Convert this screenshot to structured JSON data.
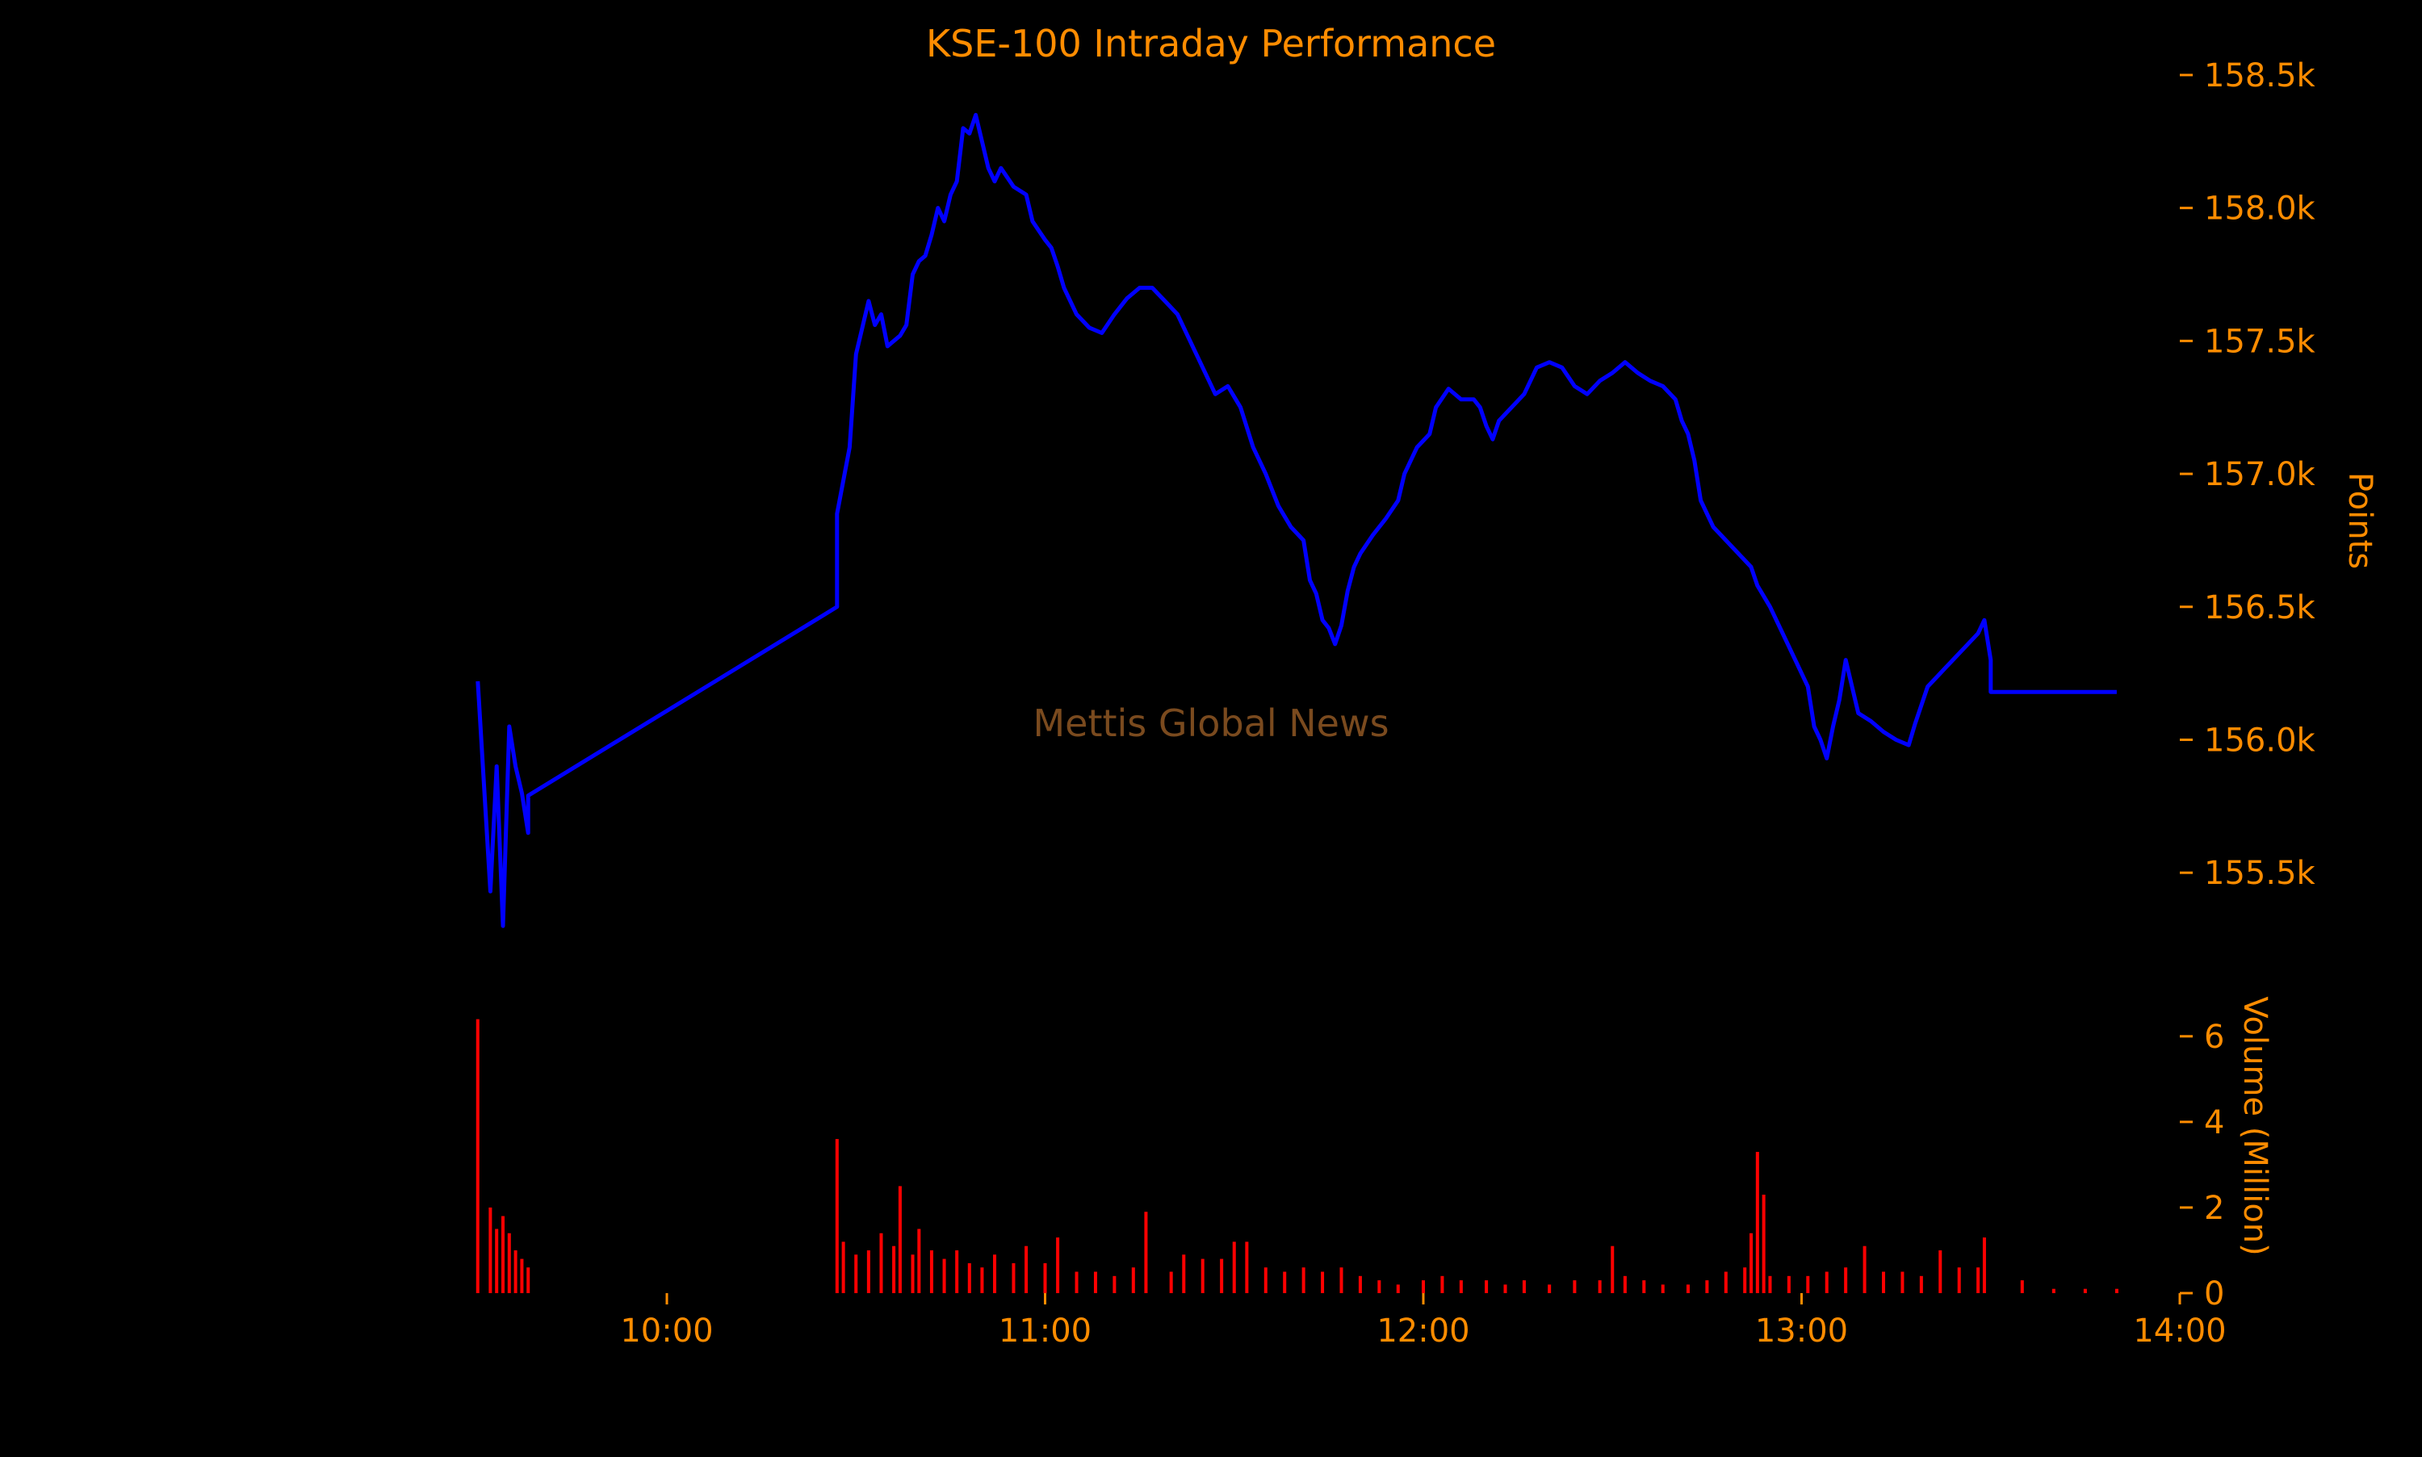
{
  "colors": {
    "background": "#000000",
    "text": "#ff8c00",
    "price_line": "#0000ff",
    "volume_bars": "#ff0000",
    "watermark": "#7a4a1e"
  },
  "chart_data": [
    {
      "type": "line",
      "title": "KSE-100 Intraday Performance",
      "watermark": "Mettis Global News",
      "xlabel": "",
      "ylabel": "Points",
      "y_axis_side": "right",
      "xlim": [
        "09:15",
        "14:00"
      ],
      "ylim": [
        155200,
        158600
      ],
      "y_ticks": [
        155500,
        156000,
        156500,
        157000,
        157500,
        158000,
        158500
      ],
      "y_tick_labels": [
        "155.5k",
        "156.0k",
        "156.5k",
        "157.0k",
        "157.5k",
        "158.0k",
        "158.5k"
      ],
      "grid": false,
      "series": [
        {
          "points": [
            [
              "09:30",
              156220
            ],
            [
              "09:32",
              155430
            ],
            [
              "09:33",
              155900
            ],
            [
              "09:34",
              155300
            ],
            [
              "09:35",
              156050
            ],
            [
              "09:36",
              155900
            ],
            [
              "09:37",
              155800
            ],
            [
              "09:38",
              155650
            ],
            [
              "09:38",
              155790
            ],
            [
              "10:27",
              156500
            ],
            [
              "10:27",
              156850
            ],
            [
              "10:29",
              157100
            ],
            [
              "10:30",
              157450
            ],
            [
              "10:31",
              157550
            ],
            [
              "10:32",
              157650
            ],
            [
              "10:33",
              157560
            ],
            [
              "10:34",
              157600
            ],
            [
              "10:35",
              157480
            ],
            [
              "10:37",
              157520
            ],
            [
              "10:38",
              157560
            ],
            [
              "10:39",
              157750
            ],
            [
              "10:40",
              157800
            ],
            [
              "10:41",
              157820
            ],
            [
              "10:42",
              157900
            ],
            [
              "10:43",
              158000
            ],
            [
              "10:44",
              157950
            ],
            [
              "10:45",
              158050
            ],
            [
              "10:46",
              158100
            ],
            [
              "10:47",
              158300
            ],
            [
              "10:48",
              158280
            ],
            [
              "10:49",
              158350
            ],
            [
              "10:50",
              158250
            ],
            [
              "10:51",
              158150
            ],
            [
              "10:52",
              158100
            ],
            [
              "10:53",
              158150
            ],
            [
              "10:55",
              158080
            ],
            [
              "10:57",
              158050
            ],
            [
              "10:58",
              157950
            ],
            [
              "11:00",
              157880
            ],
            [
              "11:01",
              157850
            ],
            [
              "11:02",
              157780
            ],
            [
              "11:03",
              157700
            ],
            [
              "11:05",
              157600
            ],
            [
              "11:07",
              157550
            ],
            [
              "11:09",
              157530
            ],
            [
              "11:11",
              157600
            ],
            [
              "11:13",
              157660
            ],
            [
              "11:15",
              157700
            ],
            [
              "11:17",
              157700
            ],
            [
              "11:19",
              157650
            ],
            [
              "11:21",
              157600
            ],
            [
              "11:23",
              157500
            ],
            [
              "11:25",
              157400
            ],
            [
              "11:27",
              157300
            ],
            [
              "11:29",
              157330
            ],
            [
              "11:31",
              157250
            ],
            [
              "11:33",
              157100
            ],
            [
              "11:35",
              157000
            ],
            [
              "11:37",
              156880
            ],
            [
              "11:39",
              156800
            ],
            [
              "11:41",
              156750
            ],
            [
              "11:42",
              156600
            ],
            [
              "11:43",
              156550
            ],
            [
              "11:44",
              156450
            ],
            [
              "11:45",
              156420
            ],
            [
              "11:46",
              156360
            ],
            [
              "11:47",
              156430
            ],
            [
              "11:48",
              156560
            ],
            [
              "11:49",
              156650
            ],
            [
              "11:50",
              156700
            ],
            [
              "11:52",
              156770
            ],
            [
              "11:54",
              156830
            ],
            [
              "11:56",
              156900
            ],
            [
              "11:57",
              157000
            ],
            [
              "11:59",
              157100
            ],
            [
              "12:01",
              157150
            ],
            [
              "12:02",
              157250
            ],
            [
              "12:04",
              157320
            ],
            [
              "12:06",
              157280
            ],
            [
              "12:08",
              157280
            ],
            [
              "12:09",
              157250
            ],
            [
              "12:10",
              157180
            ],
            [
              "12:11",
              157130
            ],
            [
              "12:12",
              157200
            ],
            [
              "12:14",
              157250
            ],
            [
              "12:16",
              157300
            ],
            [
              "12:18",
              157400
            ],
            [
              "12:20",
              157420
            ],
            [
              "12:22",
              157400
            ],
            [
              "12:24",
              157330
            ],
            [
              "12:26",
              157300
            ],
            [
              "12:28",
              157350
            ],
            [
              "12:30",
              157380
            ],
            [
              "12:32",
              157420
            ],
            [
              "12:34",
              157380
            ],
            [
              "12:36",
              157350
            ],
            [
              "12:38",
              157330
            ],
            [
              "12:40",
              157280
            ],
            [
              "12:41",
              157200
            ],
            [
              "12:42",
              157150
            ],
            [
              "12:43",
              157050
            ],
            [
              "12:44",
              156900
            ],
            [
              "12:45",
              156850
            ],
            [
              "12:46",
              156800
            ],
            [
              "12:48",
              156750
            ],
            [
              "12:50",
              156700
            ],
            [
              "12:52",
              156650
            ],
            [
              "12:53",
              156580
            ],
            [
              "12:55",
              156500
            ],
            [
              "12:57",
              156400
            ],
            [
              "12:59",
              156300
            ],
            [
              "13:01",
              156200
            ],
            [
              "13:02",
              156050
            ],
            [
              "13:03",
              156000
            ],
            [
              "13:04",
              155930
            ],
            [
              "13:05",
              156050
            ],
            [
              "13:06",
              156150
            ],
            [
              "13:07",
              156300
            ],
            [
              "13:08",
              156200
            ],
            [
              "13:09",
              156100
            ],
            [
              "13:11",
              156070
            ],
            [
              "13:13",
              156030
            ],
            [
              "13:15",
              156000
            ],
            [
              "13:17",
              155980
            ],
            [
              "13:18",
              156060
            ],
            [
              "13:20",
              156200
            ],
            [
              "13:22",
              156250
            ],
            [
              "13:24",
              156300
            ],
            [
              "13:26",
              156350
            ],
            [
              "13:28",
              156400
            ],
            [
              "13:29",
              156450
            ],
            [
              "13:30",
              156300
            ],
            [
              "13:30",
              156180
            ],
            [
              "13:50",
              156180
            ]
          ]
        }
      ]
    },
    {
      "type": "bar",
      "xlabel": "",
      "ylabel": "Volume (Million)",
      "y_axis_side": "right",
      "xlim": [
        "09:15",
        "14:00"
      ],
      "ylim": [
        0,
        6.6
      ],
      "y_ticks": [
        0,
        2,
        4,
        6
      ],
      "x_ticks": [
        "10:00",
        "11:00",
        "12:00",
        "13:00",
        "14:00"
      ],
      "grid": false,
      "bars": [
        [
          "09:30",
          6.4
        ],
        [
          "09:32",
          2.0
        ],
        [
          "09:33",
          1.5
        ],
        [
          "09:34",
          1.8
        ],
        [
          "09:35",
          1.4
        ],
        [
          "09:36",
          1.0
        ],
        [
          "09:37",
          0.8
        ],
        [
          "09:38",
          0.6
        ],
        [
          "10:27",
          3.6
        ],
        [
          "10:28",
          1.2
        ],
        [
          "10:30",
          0.9
        ],
        [
          "10:32",
          1.0
        ],
        [
          "10:34",
          1.4
        ],
        [
          "10:36",
          1.1
        ],
        [
          "10:37",
          2.5
        ],
        [
          "10:39",
          0.9
        ],
        [
          "10:40",
          1.5
        ],
        [
          "10:42",
          1.0
        ],
        [
          "10:44",
          0.8
        ],
        [
          "10:46",
          1.0
        ],
        [
          "10:48",
          0.7
        ],
        [
          "10:50",
          0.6
        ],
        [
          "10:52",
          0.9
        ],
        [
          "10:55",
          0.7
        ],
        [
          "10:57",
          1.1
        ],
        [
          "11:00",
          0.7
        ],
        [
          "11:02",
          1.3
        ],
        [
          "11:05",
          0.5
        ],
        [
          "11:08",
          0.5
        ],
        [
          "11:11",
          0.4
        ],
        [
          "11:14",
          0.6
        ],
        [
          "11:16",
          1.9
        ],
        [
          "11:20",
          0.5
        ],
        [
          "11:22",
          0.9
        ],
        [
          "11:25",
          0.8
        ],
        [
          "11:28",
          0.8
        ],
        [
          "11:30",
          1.2
        ],
        [
          "11:32",
          1.2
        ],
        [
          "11:35",
          0.6
        ],
        [
          "11:38",
          0.5
        ],
        [
          "11:41",
          0.6
        ],
        [
          "11:44",
          0.5
        ],
        [
          "11:47",
          0.6
        ],
        [
          "11:50",
          0.4
        ],
        [
          "11:53",
          0.3
        ],
        [
          "11:56",
          0.2
        ],
        [
          "12:00",
          0.3
        ],
        [
          "12:03",
          0.4
        ],
        [
          "12:06",
          0.3
        ],
        [
          "12:10",
          0.3
        ],
        [
          "12:13",
          0.2
        ],
        [
          "12:16",
          0.3
        ],
        [
          "12:20",
          0.2
        ],
        [
          "12:24",
          0.3
        ],
        [
          "12:28",
          0.3
        ],
        [
          "12:30",
          1.1
        ],
        [
          "12:32",
          0.4
        ],
        [
          "12:35",
          0.3
        ],
        [
          "12:38",
          0.2
        ],
        [
          "12:42",
          0.2
        ],
        [
          "12:45",
          0.3
        ],
        [
          "12:48",
          0.5
        ],
        [
          "12:51",
          0.6
        ],
        [
          "12:52",
          1.4
        ],
        [
          "12:53",
          3.3
        ],
        [
          "12:54",
          2.3
        ],
        [
          "12:55",
          0.4
        ],
        [
          "12:58",
          0.4
        ],
        [
          "13:01",
          0.4
        ],
        [
          "13:04",
          0.5
        ],
        [
          "13:07",
          0.6
        ],
        [
          "13:10",
          1.1
        ],
        [
          "13:13",
          0.5
        ],
        [
          "13:16",
          0.5
        ],
        [
          "13:19",
          0.4
        ],
        [
          "13:22",
          1.0
        ],
        [
          "13:25",
          0.6
        ],
        [
          "13:28",
          0.6
        ],
        [
          "13:29",
          1.3
        ],
        [
          "13:35",
          0.3
        ],
        [
          "13:40",
          0.1
        ],
        [
          "13:45",
          0.1
        ],
        [
          "13:50",
          0.1
        ]
      ]
    }
  ]
}
